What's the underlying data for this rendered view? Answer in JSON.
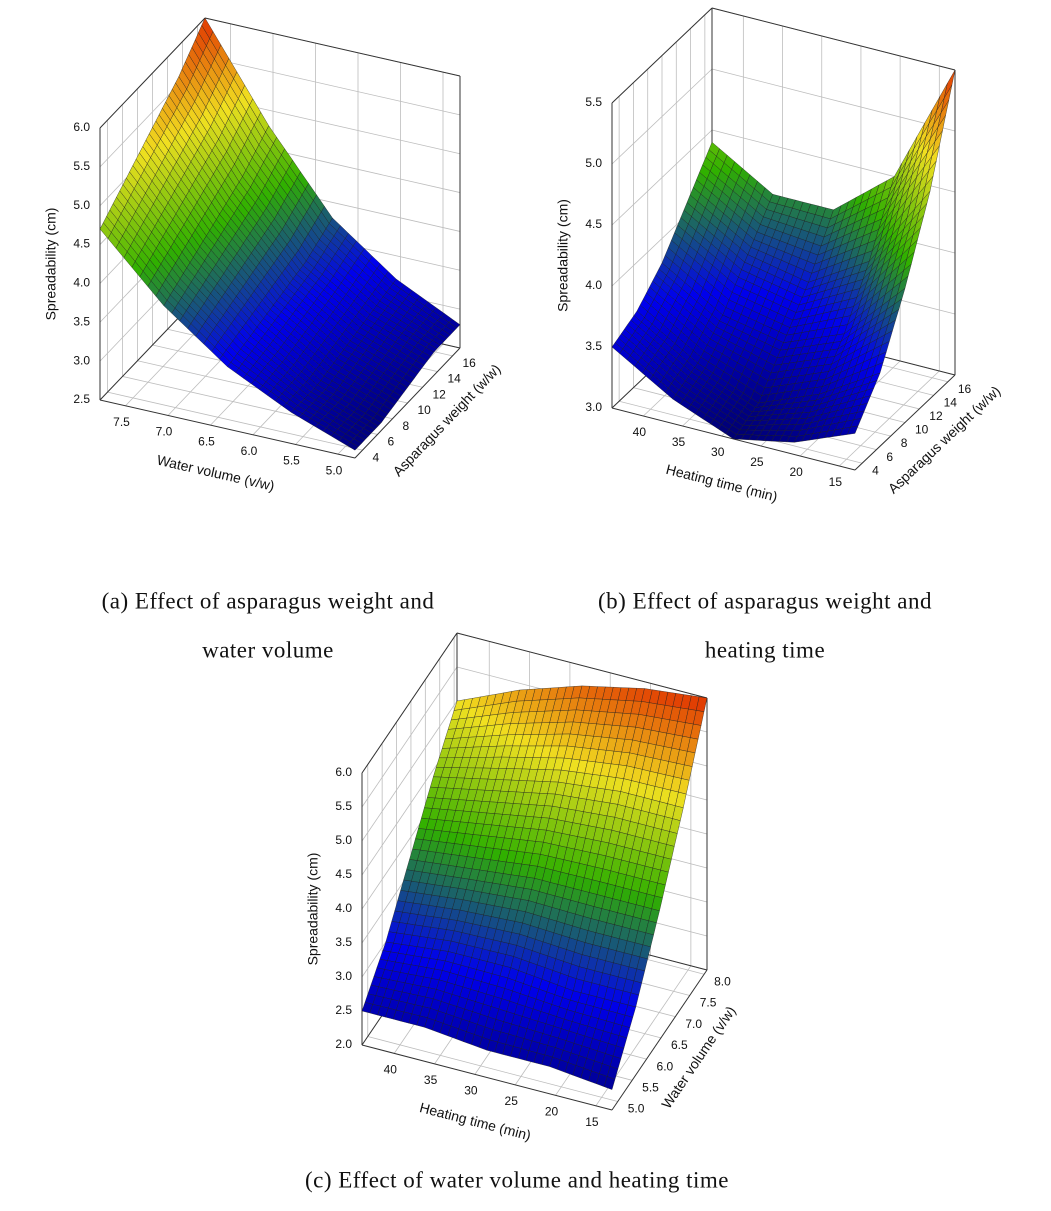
{
  "chart_data": [
    {
      "type": "surface",
      "x_label": "Water volume (v/w)",
      "y_label": "Asparagus weight (w/w)",
      "z_label": "Spreadability (cm)",
      "caption": [
        "(a) Effect of asparagus weight and",
        "water volume"
      ],
      "xlim": [
        7.8,
        4.8
      ],
      "ylim": [
        3,
        17
      ],
      "zlim": [
        2.5,
        6.0
      ],
      "xticks": [
        7.5,
        {
          "value": 7,
          "label": "7.0"
        },
        6.5,
        {
          "value": 6,
          "label": "6.0"
        },
        5.5,
        {
          "value": 5,
          "label": "5.0"
        }
      ],
      "yticks": [
        4,
        6,
        8,
        10,
        12,
        14,
        16
      ],
      "zticks": [
        2.5,
        {
          "value": 3,
          "label": "3.0"
        },
        3.5,
        {
          "value": 4,
          "label": "4.0"
        },
        4.5,
        {
          "value": 5,
          "label": "5.0"
        },
        5.5,
        {
          "value": 6,
          "label": "6.0"
        }
      ],
      "x": [
        7.8,
        7.05,
        6.3,
        5.55,
        4.8
      ],
      "y": [
        3,
        6.5,
        10,
        13.5,
        17
      ],
      "z": [
        [
          4.7,
          3.9,
          3.3,
          2.9,
          2.6
        ],
        [
          5.0,
          4.1,
          3.4,
          2.9,
          2.6
        ],
        [
          5.3,
          4.3,
          3.5,
          3.0,
          2.7
        ],
        [
          5.6,
          4.5,
          3.6,
          3.1,
          2.8
        ],
        [
          6.0,
          4.8,
          3.8,
          3.2,
          2.8
        ]
      ],
      "colormap": [
        "#000070",
        "#0000ee",
        "#30b000",
        "#f0e020",
        "#e03000"
      ],
      "grid": true
    },
    {
      "type": "surface",
      "x_label": "Heating time (min)",
      "y_label": "Asparagus weight (w/w)",
      "z_label": "Spreadability (cm)",
      "caption": [
        "(b) Effect of asparagus weight and",
        "heating time"
      ],
      "xlim": [
        44,
        13
      ],
      "ylim": [
        3,
        17
      ],
      "zlim": [
        3.0,
        5.5
      ],
      "xticks": [
        40,
        35,
        30,
        25,
        20,
        15
      ],
      "yticks": [
        4,
        6,
        8,
        10,
        12,
        14,
        16
      ],
      "zticks": [
        {
          "value": 3,
          "label": "3.0"
        },
        3.5,
        {
          "value": 4,
          "label": "4.0"
        },
        4.5,
        {
          "value": 5,
          "label": "5.0"
        },
        5.5
      ],
      "x": [
        44,
        36.25,
        28.5,
        20.75,
        13
      ],
      "y": [
        3,
        6.5,
        10,
        13.5,
        17
      ],
      "z": [
        [
          3.5,
          3.2,
          3.0,
          3.1,
          3.3
        ],
        [
          3.6,
          3.3,
          3.1,
          3.3,
          3.6
        ],
        [
          3.8,
          3.5,
          3.4,
          3.6,
          4.1
        ],
        [
          4.1,
          3.8,
          3.7,
          4.0,
          4.7
        ],
        [
          4.4,
          4.1,
          4.1,
          4.5,
          5.5
        ]
      ],
      "colormap": [
        "#000070",
        "#0000ee",
        "#30b000",
        "#f0e020",
        "#e03000"
      ],
      "grid": true
    },
    {
      "type": "surface",
      "x_label": "Heating time (min)",
      "y_label": "Water volume (v/w)",
      "z_label": "Spreadability (cm)",
      "caption": [
        "(c) Effect of water volume and heating time"
      ],
      "xlim": [
        44,
        13
      ],
      "ylim": [
        4.8,
        8.1
      ],
      "zlim": [
        2.0,
        6.0
      ],
      "xticks": [
        40,
        35,
        30,
        25,
        20,
        15
      ],
      "yticks": [
        {
          "value": 5,
          "label": "5.0"
        },
        5.5,
        {
          "value": 6,
          "label": "6.0"
        },
        6.5,
        {
          "value": 7,
          "label": "7.0"
        },
        7.5,
        {
          "value": 8,
          "label": "8.0"
        }
      ],
      "zticks": [
        {
          "value": 2,
          "label": "2.0"
        },
        2.5,
        {
          "value": 3,
          "label": "3.0"
        },
        3.5,
        {
          "value": 4,
          "label": "4.0"
        },
        4.5,
        {
          "value": 5,
          "label": "5.0"
        },
        5.5,
        {
          "value": 6,
          "label": "6.0"
        }
      ],
      "x": [
        44,
        36.25,
        28.5,
        20.75,
        13
      ],
      "y": [
        4.8,
        5.625,
        6.45,
        7.275,
        8.1
      ],
      "z": [
        [
          2.5,
          2.5,
          2.4,
          2.4,
          2.3
        ],
        [
          3.0,
          3.1,
          3.1,
          3.0,
          3.0
        ],
        [
          3.7,
          3.8,
          3.9,
          3.9,
          3.9
        ],
        [
          4.4,
          4.6,
          4.8,
          4.9,
          4.9
        ],
        [
          5.0,
          5.4,
          5.7,
          5.9,
          6.0
        ]
      ],
      "colormap": [
        "#000070",
        "#0000ee",
        "#30b000",
        "#f0e020",
        "#e03000"
      ],
      "grid": true
    }
  ]
}
